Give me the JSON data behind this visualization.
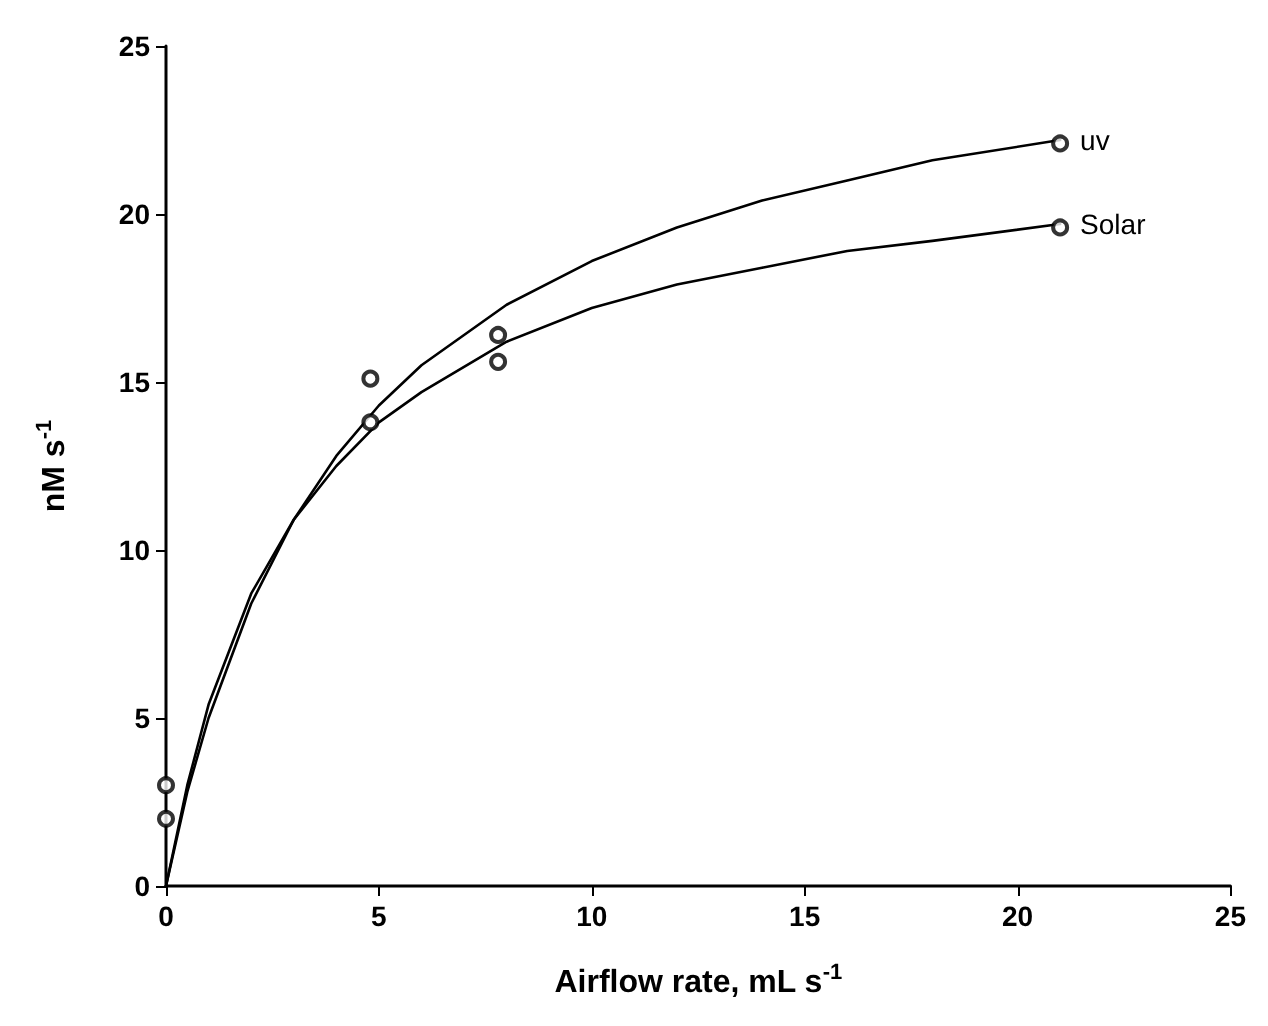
{
  "chart_data": {
    "type": "line",
    "xlabel": "Airflow rate, mL s$^{-1}$",
    "ylabel": "nM s$^{-1}$",
    "xlim": [
      0,
      25
    ],
    "xticks": [
      0,
      5,
      10,
      15,
      20,
      25
    ],
    "ylim": [
      0,
      25
    ],
    "yticks": [
      0,
      5,
      10,
      15,
      20,
      25
    ],
    "grid": false,
    "legend": false,
    "marker": "circle",
    "series": [
      {
        "type": "scatter",
        "color": "#000000",
        "x": [
          0,
          4.8,
          7.8,
          21
        ],
        "values": [
          3.0,
          15.1,
          16.4,
          22.1
        ]
      },
      {
        "type": "scatter",
        "color": "#000000",
        "x": [
          0,
          4.8,
          7.8,
          21
        ],
        "values": [
          2.0,
          13.8,
          15.6,
          19.6
        ]
      },
      {
        "name": "uv",
        "color": "#000000",
        "marker": "none",
        "line_style": "solid",
        "x": [
          0,
          0.5,
          1,
          2,
          3,
          4,
          5,
          6,
          8,
          10,
          12,
          14,
          16,
          18,
          21
        ],
        "values": [
          0,
          2.8,
          5.0,
          8.4,
          10.9,
          12.8,
          14.3,
          15.5,
          17.3,
          18.6,
          19.6,
          20.4,
          21.0,
          21.6,
          22.2
        ]
      },
      {
        "name": "Solar",
        "color": "#000000",
        "marker": "none",
        "line_style": "solid",
        "x": [
          0,
          0.5,
          1,
          2,
          3,
          4,
          5,
          6,
          8,
          10,
          12,
          14,
          16,
          18,
          21
        ],
        "values": [
          0,
          3.0,
          5.4,
          8.7,
          10.9,
          12.5,
          13.8,
          14.7,
          16.2,
          17.2,
          17.9,
          18.4,
          18.9,
          19.2,
          19.7
        ]
      }
    ]
  }
}
